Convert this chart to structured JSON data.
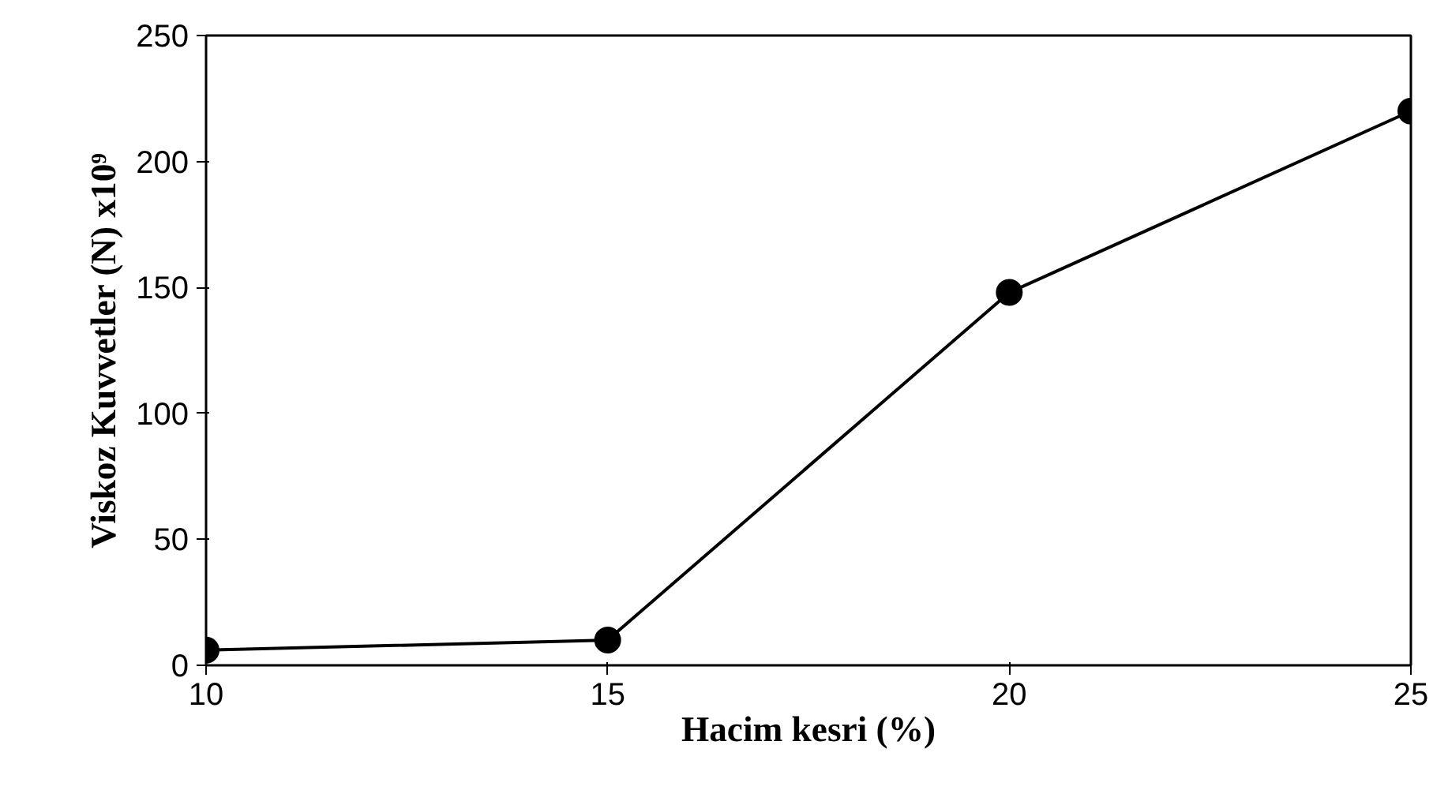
{
  "chart_data": {
    "type": "line",
    "xlabel": "Hacim kesri (%)",
    "ylabel": "Viskoz Kuvvetler (N) x10⁹",
    "x": [
      10,
      15,
      20,
      25
    ],
    "series": [
      {
        "color": "#000000",
        "values": [
          6,
          10,
          148,
          220
        ]
      }
    ],
    "xlim": [
      10,
      25
    ],
    "xticks": [
      10,
      15,
      20,
      25
    ],
    "ylim": [
      0,
      250
    ],
    "yticks": [
      0,
      50,
      100,
      150,
      200,
      250
    ],
    "grid": false,
    "marker": "circle",
    "line_style": "solid"
  }
}
